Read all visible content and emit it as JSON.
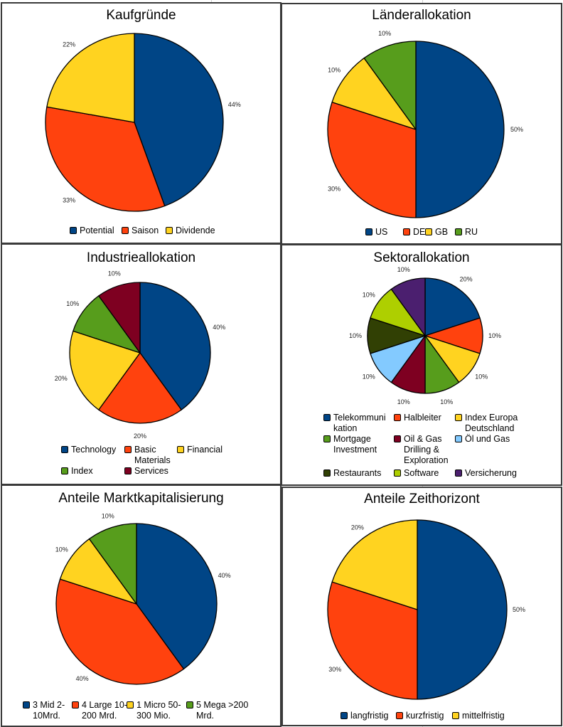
{
  "palette": [
    "#004586",
    "#ff420e",
    "#ffd320",
    "#579d1c",
    "#7e0021",
    "#83caff",
    "#314004",
    "#aecf00",
    "#4b1f6f"
  ],
  "chart_data": [
    {
      "type": "pie",
      "title": "Kaufgründe",
      "categories": [
        "Potential",
        "Saison",
        "Dividende"
      ],
      "values": [
        44.4,
        33.3,
        22.2
      ],
      "data_labels": [
        "44%",
        "33%",
        "22%"
      ],
      "legend": [
        "Potential",
        "Saison",
        "Dividende"
      ],
      "legend_position": "bottom"
    },
    {
      "type": "pie",
      "title": "Länderallokation",
      "categories": [
        "US",
        "DE",
        "GB",
        "RU"
      ],
      "values": [
        50,
        30,
        10,
        10
      ],
      "data_labels": [
        "50%",
        "30%",
        "10%",
        "10%"
      ],
      "legend": [
        "US",
        "DE",
        "GB",
        "RU"
      ],
      "legend_position": "bottom"
    },
    {
      "type": "pie",
      "title": "Industrieallokation",
      "categories": [
        "Technology",
        "Basic Materials",
        "Financial",
        "Index",
        "Services"
      ],
      "values": [
        40,
        20,
        20,
        10,
        10
      ],
      "data_labels": [
        "40%",
        "20%",
        "20%",
        "10%",
        "10%"
      ],
      "legend": [
        "Technology",
        "Basic\nMaterials",
        "Financial",
        "Index",
        "Services"
      ],
      "legend_position": "bottom"
    },
    {
      "type": "pie",
      "title": "Sektorallokation",
      "categories": [
        "Telekommunikation",
        "Halbleiter",
        "Index Europa Deutschland",
        "Mortgage Investment",
        "Oil & Gas Drilling & Exploration",
        "Öl und Gas",
        "Restaurants",
        "Software",
        "Versicherung"
      ],
      "values": [
        20,
        10,
        10,
        10,
        10,
        10,
        10,
        10,
        10
      ],
      "data_labels": [
        "20%",
        "10%",
        "10%",
        "10%",
        "10%",
        "10%",
        "10%",
        "10%",
        "10%"
      ],
      "legend": [
        "Telekommuni\nkation",
        "Halbleiter",
        "Index Europa\nDeutschland",
        "Mortgage\nInvestment",
        "Oil & Gas\nDrilling &\nExploration",
        "Öl und Gas",
        "Restaurants",
        "Software",
        "Versicherung"
      ],
      "legend_position": "bottom"
    },
    {
      "type": "pie",
      "title": "Anteile Marktkapitalisierung",
      "categories": [
        "3 Mid 2-10Mrd.",
        "4 Large 10-200 Mrd.",
        "1 Micro 50-300 Mio.",
        "5 Mega >200 Mrd."
      ],
      "values": [
        40,
        40,
        10,
        10
      ],
      "data_labels": [
        "40%",
        "40%",
        "10%",
        "10%"
      ],
      "legend": [
        "3 Mid 2-\n10Mrd.",
        "4 Large 10-\n200 Mrd.",
        "1 Micro 50-\n300 Mio.",
        "5 Mega >200\nMrd."
      ],
      "legend_position": "bottom"
    },
    {
      "type": "pie",
      "title": "Anteile Zeithorizont",
      "categories": [
        "langfristig",
        "kurzfristig",
        "mittelfristig"
      ],
      "values": [
        50,
        30,
        20
      ],
      "data_labels": [
        "50%",
        "30%",
        "20%"
      ],
      "legend": [
        "langfristig",
        "kurzfristig",
        "mittelfristig"
      ],
      "legend_position": "bottom"
    }
  ]
}
